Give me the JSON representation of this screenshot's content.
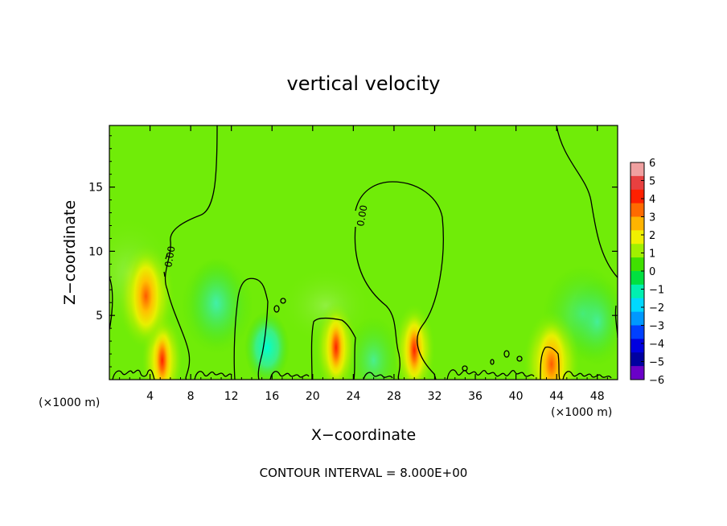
{
  "chart_data": {
    "type": "heatmap",
    "title": "vertical velocity",
    "xlabel": "X−coordinate",
    "ylabel": "Z−coordinate",
    "x_unit_left": "(×1000 m)",
    "x_unit_right": "(×1000 m)",
    "xlim": [
      0,
      50
    ],
    "ylim": [
      0,
      19.8
    ],
    "xticks": [
      "4",
      "8",
      "12",
      "16",
      "20",
      "24",
      "28",
      "32",
      "36",
      "40",
      "44",
      "48"
    ],
    "xtick_values": [
      4,
      8,
      12,
      16,
      20,
      24,
      28,
      32,
      36,
      40,
      44,
      48
    ],
    "yticks": [
      "5",
      "10",
      "15"
    ],
    "ytick_values": [
      5,
      10,
      15
    ],
    "colorbar": {
      "labels": [
        "6",
        "5",
        "4",
        "3",
        "2",
        "1",
        "0",
        "−1",
        "−2",
        "−3",
        "−4",
        "−5",
        "−6"
      ],
      "values": [
        6,
        5,
        4,
        3,
        2,
        1,
        0,
        -1,
        -2,
        -3,
        -4,
        -5,
        -6
      ],
      "colors": [
        "#f0a0a0",
        "#e84040",
        "#ff2000",
        "#ff6a00",
        "#ffb400",
        "#f0f000",
        "#a0f000",
        "#40e000",
        "#00e040",
        "#00f0b0",
        "#00d8ff",
        "#0098ff",
        "#0040ff",
        "#0000e0",
        "#0000a0",
        "#6a00c8"
      ]
    },
    "contour_labels": [
      "0.00",
      "0.00",
      "0.00"
    ],
    "footer": "CONTOUR INTERVAL = 8.000E+00",
    "updrafts": [
      {
        "x": 5.2,
        "z": 1.5,
        "peak": 4
      },
      {
        "x": 3.6,
        "z": 6.5,
        "peak": 2.5
      },
      {
        "x": 22.3,
        "z": 2.5,
        "peak": 4
      },
      {
        "x": 30.0,
        "z": 2.3,
        "peak": 4
      },
      {
        "x": 43.5,
        "z": 1.2,
        "peak": 2.5
      }
    ],
    "downdrafts": [
      {
        "x": 15.5,
        "z": 2.5,
        "peak": -1.8
      },
      {
        "x": 10.5,
        "z": 6.0,
        "peak": -0.8
      },
      {
        "x": 48.0,
        "z": 4.5,
        "peak": -1.2
      },
      {
        "x": 26.0,
        "z": 1.5,
        "peak": -1.0
      }
    ]
  }
}
